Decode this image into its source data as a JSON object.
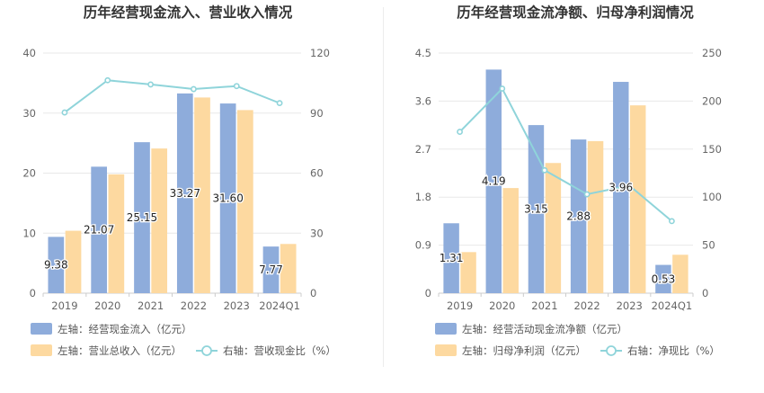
{
  "chart_data": [
    {
      "type": "bar",
      "title": "历年经营现金流入、营业收入情况",
      "categories": [
        "2019",
        "2020",
        "2021",
        "2022",
        "2023",
        "2024Q1"
      ],
      "left_axis": {
        "min": 0,
        "max": 40,
        "ticks": [
          0,
          10,
          20,
          30,
          40
        ]
      },
      "right_axis": {
        "min": 0,
        "max": 120,
        "ticks": [
          0,
          30,
          60,
          90,
          120
        ]
      },
      "series": [
        {
          "name": "左轴：经营现金流入（亿元）",
          "kind": "bar",
          "axis": "left",
          "color": "#8eacdb",
          "values": [
            9.38,
            21.07,
            25.15,
            33.27,
            31.6,
            7.77
          ],
          "labels": [
            "9.38",
            "21.07",
            "25.15",
            "33.27",
            "31.60",
            "7.77"
          ]
        },
        {
          "name": "左轴：营业总收入（亿元）",
          "kind": "bar",
          "axis": "left",
          "color": "#fdd9a0",
          "values": [
            10.4,
            19.8,
            24.1,
            32.6,
            30.5,
            8.2
          ]
        },
        {
          "name": "右轴：营收现金比（%）",
          "kind": "line",
          "axis": "right",
          "color": "#8fd4da",
          "values": [
            90.3,
            106.4,
            104.3,
            102.0,
            103.5,
            95.0
          ]
        }
      ]
    },
    {
      "type": "bar",
      "title": "历年经营现金流净额、归母净利润情况",
      "categories": [
        "2019",
        "2020",
        "2021",
        "2022",
        "2023",
        "2024Q1"
      ],
      "left_axis": {
        "min": 0,
        "max": 4.5,
        "ticks": [
          "0",
          "0.9",
          "1.8",
          "2.7",
          "3.6",
          "4.5"
        ]
      },
      "right_axis": {
        "min": 0,
        "max": 250,
        "ticks": [
          0,
          50,
          100,
          150,
          200,
          250
        ]
      },
      "series": [
        {
          "name": "左轴：经营活动现金流净额（亿元）",
          "kind": "bar",
          "axis": "left",
          "color": "#8eacdb",
          "values": [
            1.31,
            4.19,
            3.15,
            2.88,
            3.96,
            0.53
          ],
          "labels": [
            "1.31",
            "4.19",
            "3.15",
            "2.88",
            "3.96",
            "0.53"
          ]
        },
        {
          "name": "左轴：归母净利润（亿元）",
          "kind": "bar",
          "axis": "left",
          "color": "#fdd9a0",
          "values": [
            0.77,
            1.97,
            2.44,
            2.85,
            3.52,
            0.72
          ]
        },
        {
          "name": "右轴：净现比（%）",
          "kind": "line",
          "axis": "right",
          "color": "#8fd4da",
          "values": [
            168,
            213,
            128,
            103,
            112,
            75
          ]
        }
      ]
    }
  ]
}
